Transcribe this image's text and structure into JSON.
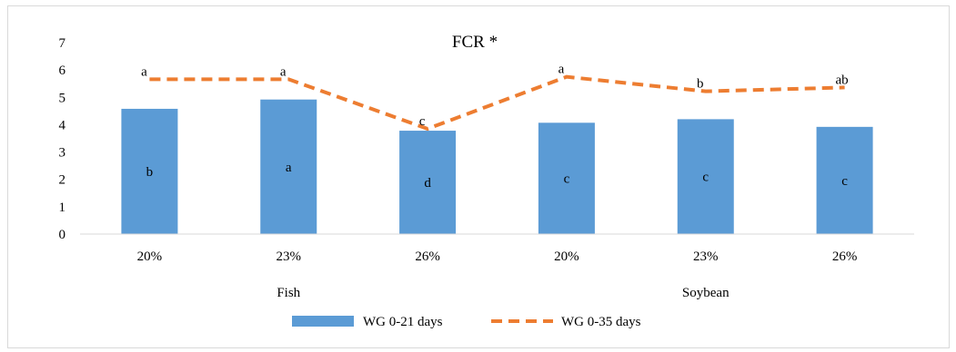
{
  "chart_data": {
    "type": "bar",
    "title": "FCR *",
    "groups": [
      {
        "label": "Fish",
        "categories": [
          "20%",
          "23%",
          "26%"
        ]
      },
      {
        "label": "Soybean",
        "categories": [
          "20%",
          "23%",
          "26%"
        ]
      }
    ],
    "categories": [
      "20%",
      "23%",
      "26%",
      "20%",
      "23%",
      "26%"
    ],
    "ylim": [
      0,
      7
    ],
    "yticks": [
      0,
      1,
      2,
      3,
      4,
      5,
      6,
      7
    ],
    "grid": false,
    "legend_position": "bottom",
    "series": [
      {
        "name": "WG 0-21 days",
        "type": "bar",
        "color": "#5b9bd5",
        "values": [
          4.58,
          4.92,
          3.78,
          4.07,
          4.2,
          3.92
        ],
        "labels": [
          "b",
          "a",
          "d",
          "c",
          "c",
          "c"
        ]
      },
      {
        "name": "WG 0-35 days",
        "type": "line",
        "style": "dashed",
        "color": "#ed7d31",
        "values": [
          5.66,
          5.66,
          3.85,
          5.75,
          5.22,
          5.36
        ],
        "labels": [
          "a",
          "a",
          "c",
          "a",
          "b",
          "ab"
        ]
      }
    ]
  }
}
